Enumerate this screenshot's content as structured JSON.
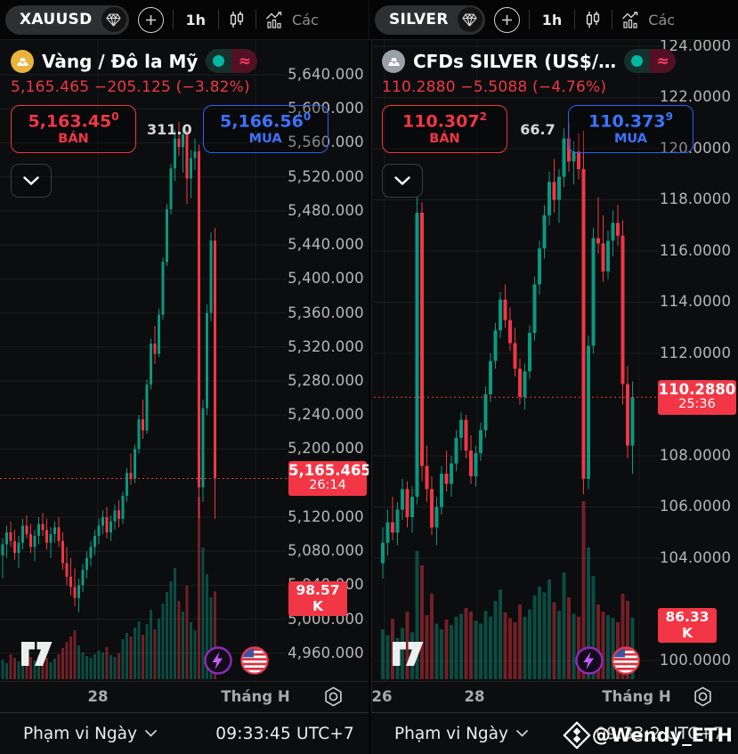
{
  "toolbars": [
    {
      "symbol": "XAUUSD",
      "timeframe": "1h",
      "indicators_label": "Các"
    },
    {
      "symbol": "SILVER",
      "timeframe": "1h",
      "indicators_label": "Các"
    }
  ],
  "panels": [
    {
      "title": "Vàng / Đô la Mỹ",
      "change_line": "5,165.465 −205.125 (−3.82%)",
      "sell": {
        "price": "5,163.45",
        "sup": "0",
        "label": "BÁN"
      },
      "spread": "311.0",
      "buy": {
        "price": "5,166.56",
        "sup": "0",
        "label": "MUA"
      },
      "footer": {
        "range_label": "Phạm vi Ngày",
        "time": "09:33:45 UTC+7"
      }
    },
    {
      "title": "CFDs SILVER (US$/…",
      "change_line": "110.2880 −5.5088 (−4.76%)",
      "sell": {
        "price": "110.307",
        "sup": "2",
        "label": "BÁN"
      },
      "spread": "66.7",
      "buy": {
        "price": "110.373",
        "sup": "9",
        "label": "MUA"
      },
      "footer": {
        "range_label": "Phạm vi Ngày",
        "time": "09:33:2 UTC+7"
      }
    }
  ],
  "watermark": {
    "icon": "diamond-logo",
    "text": "@Wendy_ETH"
  },
  "chart_data": [
    {
      "type": "candlestick",
      "symbol": "XAUUSD",
      "title": "Vàng / Đô la Mỹ",
      "ylim": [
        4927.4,
        5680.8
      ],
      "close": 5165.465,
      "close_label": "5,165.465",
      "countdown": "26:14",
      "vol_label": "98.57 K",
      "colors": {
        "up": "#089981",
        "down": "#f23645",
        "grid": "rgba(255,255,255,0.07)",
        "label_bg": "#f23645"
      },
      "ticks": [
        {
          "v": 5640,
          "label": "5,640.000"
        },
        {
          "v": 5600,
          "label": "5,600.000"
        },
        {
          "v": 5560,
          "label": "5,560.000"
        },
        {
          "v": 5520,
          "label": "5,520.000"
        },
        {
          "v": 5480,
          "label": "5,480.000"
        },
        {
          "v": 5440,
          "label": "5,440.000"
        },
        {
          "v": 5400,
          "label": "5,400.000"
        },
        {
          "v": 5360,
          "label": "5,360.000"
        },
        {
          "v": 5320,
          "label": "5,320.000"
        },
        {
          "v": 5280,
          "label": "5,280.000"
        },
        {
          "v": 5240,
          "label": "5,240.000"
        },
        {
          "v": 5200,
          "label": "5,200.000"
        },
        {
          "v": 5120,
          "label": "5,120.000"
        },
        {
          "v": 5080,
          "label": "5,080.000"
        },
        {
          "v": 5040,
          "label": "5,040.000"
        },
        {
          "v": 5000,
          "label": "5,000.000"
        },
        {
          "v": 4960,
          "label": "4,960.000"
        }
      ],
      "time_ticks": [
        {
          "x": 110,
          "label": "28"
        },
        {
          "x": 287,
          "label": "Tháng H"
        }
      ],
      "candles": [
        [
          5075,
          5095,
          5048,
          5088
        ],
        [
          5088,
          5110,
          5072,
          5102
        ],
        [
          5102,
          5115,
          5085,
          5092
        ],
        [
          5092,
          5105,
          5070,
          5078
        ],
        [
          5078,
          5098,
          5060,
          5090
        ],
        [
          5090,
          5118,
          5082,
          5110
        ],
        [
          5110,
          5122,
          5095,
          5100
        ],
        [
          5100,
          5112,
          5078,
          5085
        ],
        [
          5085,
          5105,
          5068,
          5098
        ],
        [
          5098,
          5120,
          5088,
          5112
        ],
        [
          5112,
          5125,
          5098,
          5105
        ],
        [
          5105,
          5118,
          5082,
          5090
        ],
        [
          5090,
          5108,
          5072,
          5100
        ],
        [
          5100,
          5115,
          5090,
          5108
        ],
        [
          5108,
          5120,
          5085,
          5092
        ],
        [
          5092,
          5102,
          5058,
          5066
        ],
        [
          5066,
          5085,
          5040,
          5050
        ],
        [
          5050,
          5072,
          5028,
          5038
        ],
        [
          5038,
          5060,
          5015,
          5025
        ],
        [
          5025,
          5048,
          5008,
          5040
        ],
        [
          5040,
          5065,
          5032,
          5058
        ],
        [
          5058,
          5080,
          5048,
          5072
        ],
        [
          5072,
          5092,
          5062,
          5085
        ],
        [
          5085,
          5105,
          5075,
          5098
        ],
        [
          5098,
          5118,
          5088,
          5110
        ],
        [
          5110,
          5128,
          5100,
          5120
        ],
        [
          5120,
          5132,
          5095,
          5102
        ],
        [
          5102,
          5122,
          5092,
          5115
        ],
        [
          5115,
          5135,
          5105,
          5128
        ],
        [
          5128,
          5140,
          5108,
          5118
        ],
        [
          5118,
          5150,
          5112,
          5145
        ],
        [
          5145,
          5178,
          5138,
          5172
        ],
        [
          5172,
          5195,
          5158,
          5165
        ],
        [
          5165,
          5205,
          5160,
          5200
        ],
        [
          5200,
          5240,
          5195,
          5235
        ],
        [
          5235,
          5258,
          5212,
          5222
        ],
        [
          5222,
          5282,
          5218,
          5276
        ],
        [
          5276,
          5330,
          5270,
          5324
        ],
        [
          5324,
          5345,
          5300,
          5312
        ],
        [
          5312,
          5365,
          5308,
          5358
        ],
        [
          5358,
          5425,
          5352,
          5420
        ],
        [
          5420,
          5488,
          5415,
          5482
        ],
        [
          5482,
          5535,
          5476,
          5530
        ],
        [
          5530,
          5575,
          5515,
          5565
        ],
        [
          5565,
          5585,
          5545,
          5555
        ],
        [
          5555,
          5578,
          5525,
          5570
        ],
        [
          5570,
          5575,
          5488,
          5518
        ],
        [
          5518,
          5552,
          5495,
          5542
        ],
        [
          5542,
          5565,
          5528,
          5550
        ],
        [
          5550,
          5558,
          5118,
          5155
        ],
        [
          5155,
          5258,
          5138,
          5248
        ],
        [
          5248,
          5370,
          5240,
          5360
        ],
        [
          5360,
          5455,
          5350,
          5445
        ],
        [
          5445,
          5460,
          5118,
          5165.465
        ]
      ],
      "volumes": [
        22,
        18,
        28,
        24,
        20,
        26,
        30,
        25,
        21,
        27,
        32,
        24,
        19,
        23,
        28,
        35,
        42,
        48,
        55,
        38,
        30,
        26,
        24,
        28,
        32,
        30,
        36,
        27,
        25,
        29,
        45,
        52,
        48,
        58,
        65,
        50,
        62,
        78,
        56,
        68,
        85,
        98,
        110,
        125,
        88,
        76,
        105,
        64,
        55,
        205,
        148,
        118,
        92,
        98.57
      ]
    },
    {
      "type": "candlestick",
      "symbol": "SILVER",
      "title": "CFDs SILVER (US$/…",
      "ylim": [
        99.2,
        124.243
      ],
      "close": 110.288,
      "close_label": "110.2880",
      "countdown": "25:36",
      "vol_label": "86.33 K",
      "colors": {
        "up": "#089981",
        "down": "#f23645",
        "grid": "rgba(255,255,255,0.07)",
        "label_bg": "#f23645"
      },
      "ticks": [
        {
          "v": 124,
          "label": "124.0000"
        },
        {
          "v": 122,
          "label": "122.0000"
        },
        {
          "v": 120,
          "label": "120.0000"
        },
        {
          "v": 118,
          "label": "118.0000"
        },
        {
          "v": 116,
          "label": "116.0000"
        },
        {
          "v": 114,
          "label": "114.0000"
        },
        {
          "v": 112,
          "label": "112.0000"
        },
        {
          "v": 108,
          "label": "108.0000"
        },
        {
          "v": 106,
          "label": "106.0000"
        },
        {
          "v": 104,
          "label": "104.0000"
        },
        {
          "v": 100,
          "label": "100.0000"
        }
      ],
      "time_ticks": [
        {
          "x": 12,
          "label": "26"
        },
        {
          "x": 116,
          "label": "28"
        },
        {
          "x": 298,
          "label": "Tháng H"
        }
      ],
      "candles": [
        [
          103.8,
          105.2,
          103.2,
          104.6
        ],
        [
          104.6,
          105.9,
          104.1,
          105.4
        ],
        [
          105.4,
          106.4,
          104.7,
          105.0
        ],
        [
          105.0,
          106.2,
          104.5,
          105.9
        ],
        [
          105.9,
          107.1,
          105.5,
          106.7
        ],
        [
          106.7,
          107.0,
          105.2,
          105.6
        ],
        [
          105.6,
          106.8,
          105.0,
          106.4
        ],
        [
          106.4,
          118.1,
          106.1,
          117.5
        ],
        [
          117.5,
          117.9,
          107.0,
          107.6
        ],
        [
          107.6,
          108.4,
          106.2,
          106.7
        ],
        [
          106.7,
          107.2,
          104.9,
          105.2
        ],
        [
          105.2,
          106.4,
          104.5,
          106.0
        ],
        [
          106.0,
          107.6,
          105.7,
          107.3
        ],
        [
          107.3,
          108.2,
          106.6,
          106.9
        ],
        [
          106.9,
          108.0,
          106.4,
          107.7
        ],
        [
          107.7,
          109.0,
          107.4,
          108.7
        ],
        [
          108.7,
          109.7,
          108.2,
          109.4
        ],
        [
          109.4,
          109.6,
          107.9,
          108.2
        ],
        [
          108.2,
          108.8,
          106.9,
          107.2
        ],
        [
          107.2,
          108.4,
          106.8,
          108.1
        ],
        [
          108.1,
          109.3,
          107.8,
          109.0
        ],
        [
          109.0,
          110.7,
          108.7,
          110.4
        ],
        [
          110.4,
          112.0,
          110.1,
          111.7
        ],
        [
          111.7,
          113.2,
          111.4,
          112.9
        ],
        [
          112.9,
          114.4,
          112.6,
          114.1
        ],
        [
          114.1,
          114.7,
          113.0,
          113.3
        ],
        [
          113.3,
          113.8,
          112.1,
          112.4
        ],
        [
          112.4,
          113.0,
          111.1,
          111.4
        ],
        [
          111.4,
          111.8,
          110.0,
          110.3
        ],
        [
          110.3,
          111.6,
          109.8,
          111.3
        ],
        [
          111.3,
          113.1,
          111.0,
          112.8
        ],
        [
          112.8,
          115.0,
          112.5,
          114.7
        ],
        [
          114.7,
          116.4,
          114.3,
          116.1
        ],
        [
          116.1,
          117.8,
          115.7,
          117.4
        ],
        [
          117.4,
          119.1,
          117.0,
          118.7
        ],
        [
          118.7,
          119.6,
          117.5,
          118.0
        ],
        [
          118.0,
          119.2,
          117.1,
          118.9
        ],
        [
          118.9,
          120.8,
          118.5,
          120.4
        ],
        [
          120.4,
          121.0,
          119.1,
          119.5
        ],
        [
          119.5,
          120.3,
          118.6,
          119.9
        ],
        [
          119.9,
          120.6,
          118.8,
          119.2
        ],
        [
          119.2,
          120.7,
          106.5,
          107.1
        ],
        [
          107.1,
          112.7,
          106.7,
          112.3
        ],
        [
          112.3,
          116.9,
          112.0,
          116.5
        ],
        [
          116.5,
          118.1,
          115.9,
          116.3
        ],
        [
          116.3,
          117.4,
          114.8,
          115.2
        ],
        [
          115.2,
          116.8,
          114.9,
          116.4
        ],
        [
          116.4,
          117.6,
          115.8,
          117.1
        ],
        [
          117.1,
          117.8,
          116.2,
          116.6
        ],
        [
          116.6,
          117.2,
          110.0,
          110.8
        ],
        [
          110.8,
          111.5,
          107.9,
          108.4
        ],
        [
          108.4,
          110.9,
          107.3,
          110.288
        ]
      ],
      "volumes": [
        70,
        62,
        85,
        58,
        72,
        95,
        66,
        180,
        160,
        90,
        120,
        78,
        70,
        84,
        76,
        88,
        92,
        100,
        95,
        82,
        78,
        96,
        88,
        110,
        126,
        94,
        86,
        80,
        105,
        88,
        98,
        118,
        130,
        122,
        140,
        108,
        96,
        150,
        115,
        92,
        88,
        250,
        185,
        145,
        105,
        95,
        90,
        86,
        80,
        120,
        110,
        86.33
      ]
    }
  ]
}
